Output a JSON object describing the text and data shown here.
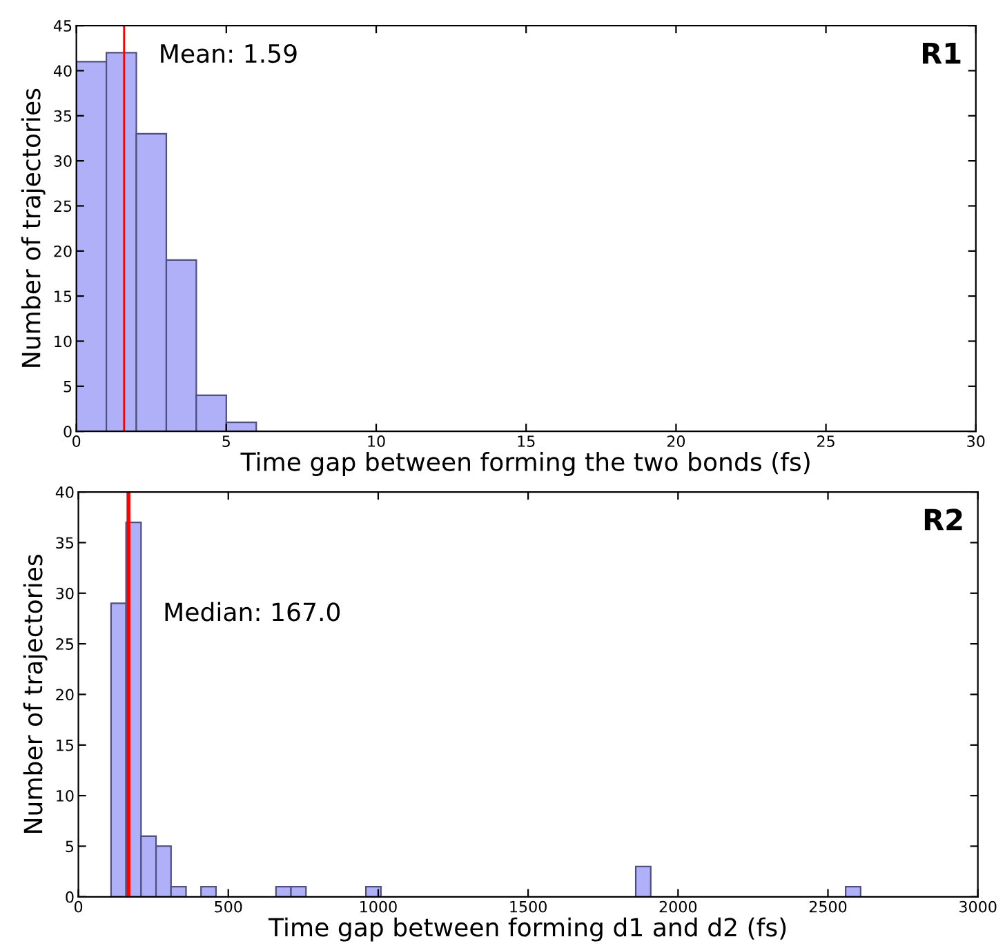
{
  "chart_data": [
    {
      "type": "histogram",
      "xlabel": "Time gap between forming the two bonds (fs)",
      "ylabel": "Number of trajectories",
      "annotations": [
        "R1"
      ],
      "bins": [
        0,
        1,
        2,
        3,
        4,
        5,
        6
      ],
      "values": [
        41,
        42,
        33,
        19,
        4,
        1
      ],
      "color": "#b0b0f8",
      "xlim": [
        0,
        30
      ],
      "xticks": [
        0,
        5,
        10,
        15,
        20,
        25,
        30
      ],
      "ylim": [
        0,
        45
      ],
      "yticks": [
        0,
        5,
        10,
        15,
        20,
        25,
        30,
        35,
        40,
        45
      ],
      "grid": false,
      "ref_lines": [
        {
          "axis": "x",
          "value": 1.59,
          "label": "Mean: 1.59",
          "color": "#ff0000"
        }
      ]
    },
    {
      "type": "histogram",
      "xlabel": "Time gap between forming d1 and d2 (fs)",
      "ylabel": "Number of trajectories",
      "annotations": [
        "R2"
      ],
      "bins": [
        109,
        159,
        209,
        259,
        309,
        359,
        409,
        459,
        509,
        559,
        609,
        659,
        709,
        759,
        809,
        859,
        909,
        959,
        1009,
        1059,
        1109,
        1159,
        1209,
        1259,
        1309,
        1359,
        1409,
        1459,
        1509,
        1559,
        1609,
        1659,
        1709,
        1759,
        1809,
        1859,
        1909,
        1959,
        2009,
        2059,
        2109,
        2159,
        2209,
        2259,
        2309,
        2359,
        2409,
        2459,
        2509,
        2559,
        2609
      ],
      "values": [
        29,
        37,
        6,
        5,
        1,
        0,
        1,
        0,
        0,
        0,
        0,
        1,
        1,
        0,
        0,
        0,
        0,
        1,
        0,
        0,
        0,
        0,
        0,
        0,
        0,
        0,
        0,
        0,
        0,
        0,
        0,
        0,
        0,
        0,
        0,
        3,
        0,
        0,
        0,
        0,
        0,
        0,
        0,
        0,
        0,
        0,
        0,
        0,
        0,
        1
      ],
      "color": "#b0b0f8",
      "xlim": [
        0,
        3000
      ],
      "xticks": [
        0,
        500,
        1000,
        1500,
        2000,
        2500,
        3000
      ],
      "ylim": [
        0,
        40
      ],
      "yticks": [
        0,
        5,
        10,
        15,
        20,
        25,
        30,
        35,
        40
      ],
      "grid": false,
      "ref_lines": [
        {
          "axis": "x",
          "value": 167.0,
          "label": "Median: 167.0",
          "color": "#ff0000"
        }
      ]
    }
  ]
}
